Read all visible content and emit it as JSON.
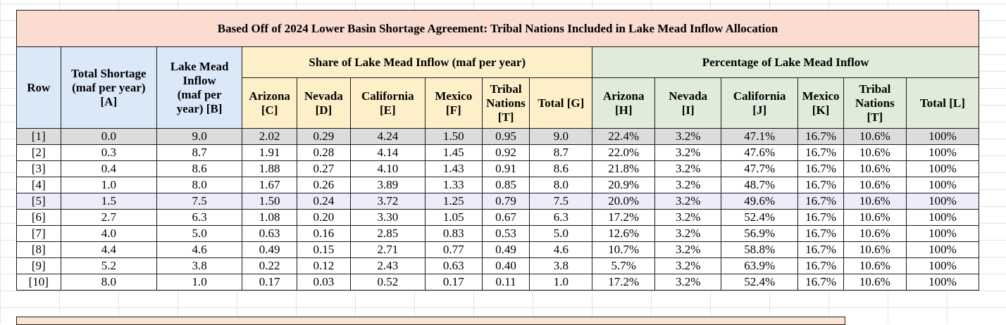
{
  "title": "Based Off of 2024 Lower Basin Shortage Agreement: Tribal Nations Included in Lake Mead Inflow Allocation",
  "headers": {
    "row": "Row",
    "total_shortage": [
      "Total Shortage",
      "(maf per year)",
      "[A]"
    ],
    "lake_mead_inflow": [
      "Lake Mead",
      "Inflow",
      "(maf per",
      "year) [B]"
    ],
    "share_group": "Share of Lake Mead Inflow (maf per year)",
    "percent_group": "Percentage of Lake Mead Inflow",
    "share_cols": [
      [
        "Arizona",
        "[C]"
      ],
      [
        "Nevada",
        "[D]"
      ],
      [
        "California",
        "[E]"
      ],
      [
        "Mexico",
        "[F]"
      ],
      [
        "Tribal",
        "Nations",
        "[T]"
      ],
      [
        "Total [G]"
      ]
    ],
    "percent_cols": [
      [
        "Arizona",
        "[H]"
      ],
      [
        "Nevada",
        "[I]"
      ],
      [
        "California",
        "[J]"
      ],
      [
        "Mexico",
        "[K]"
      ],
      [
        "Tribal",
        "Nations",
        "[T]"
      ],
      [
        "Total [L]"
      ]
    ]
  },
  "rows": [
    [
      "[1]",
      "0.0",
      "9.0",
      "2.02",
      "0.29",
      "4.24",
      "1.50",
      "0.95",
      "9.0",
      "22.4%",
      "3.2%",
      "47.1%",
      "16.7%",
      "10.6%",
      "100%"
    ],
    [
      "[2]",
      "0.3",
      "8.7",
      "1.91",
      "0.28",
      "4.14",
      "1.45",
      "0.92",
      "8.7",
      "22.0%",
      "3.2%",
      "47.6%",
      "16.7%",
      "10.6%",
      "100%"
    ],
    [
      "[3]",
      "0.4",
      "8.6",
      "1.88",
      "0.27",
      "4.10",
      "1.43",
      "0.91",
      "8.6",
      "21.8%",
      "3.2%",
      "47.7%",
      "16.7%",
      "10.6%",
      "100%"
    ],
    [
      "[4]",
      "1.0",
      "8.0",
      "1.67",
      "0.26",
      "3.89",
      "1.33",
      "0.85",
      "8.0",
      "20.9%",
      "3.2%",
      "48.7%",
      "16.7%",
      "10.6%",
      "100%"
    ],
    [
      "[5]",
      "1.5",
      "7.5",
      "1.50",
      "0.24",
      "3.72",
      "1.25",
      "0.79",
      "7.5",
      "20.0%",
      "3.2%",
      "49.6%",
      "16.7%",
      "10.6%",
      "100%"
    ],
    [
      "[6]",
      "2.7",
      "6.3",
      "1.08",
      "0.20",
      "3.30",
      "1.05",
      "0.67",
      "6.3",
      "17.2%",
      "3.2%",
      "52.4%",
      "16.7%",
      "10.6%",
      "100%"
    ],
    [
      "[7]",
      "4.0",
      "5.0",
      "0.63",
      "0.16",
      "2.85",
      "0.83",
      "0.53",
      "5.0",
      "12.6%",
      "3.2%",
      "56.9%",
      "16.7%",
      "10.6%",
      "100%"
    ],
    [
      "[8]",
      "4.4",
      "4.6",
      "0.49",
      "0.15",
      "2.71",
      "0.77",
      "0.49",
      "4.6",
      "10.7%",
      "3.2%",
      "58.8%",
      "16.7%",
      "10.6%",
      "100%"
    ],
    [
      "[9]",
      "5.2",
      "3.8",
      "0.22",
      "0.12",
      "2.43",
      "0.63",
      "0.40",
      "3.8",
      "5.7%",
      "3.2%",
      "63.9%",
      "16.7%",
      "10.6%",
      "100%"
    ],
    [
      "[10]",
      "8.0",
      "1.0",
      "0.17",
      "0.03",
      "0.52",
      "0.17",
      "0.11",
      "1.0",
      "17.2%",
      "3.2%",
      "52.4%",
      "16.7%",
      "10.6%",
      "100%"
    ]
  ],
  "row_highlights": {
    "0": "grey",
    "4": "lavender"
  },
  "colors": {
    "title_bg": "#fbdcd0",
    "blue_header": "#dbe8f7",
    "yellow_header": "#fdf0c8",
    "green_header": "#deecd9",
    "highlight_grey": "#dcdcdc",
    "highlight_lavender": "#ececfb"
  }
}
